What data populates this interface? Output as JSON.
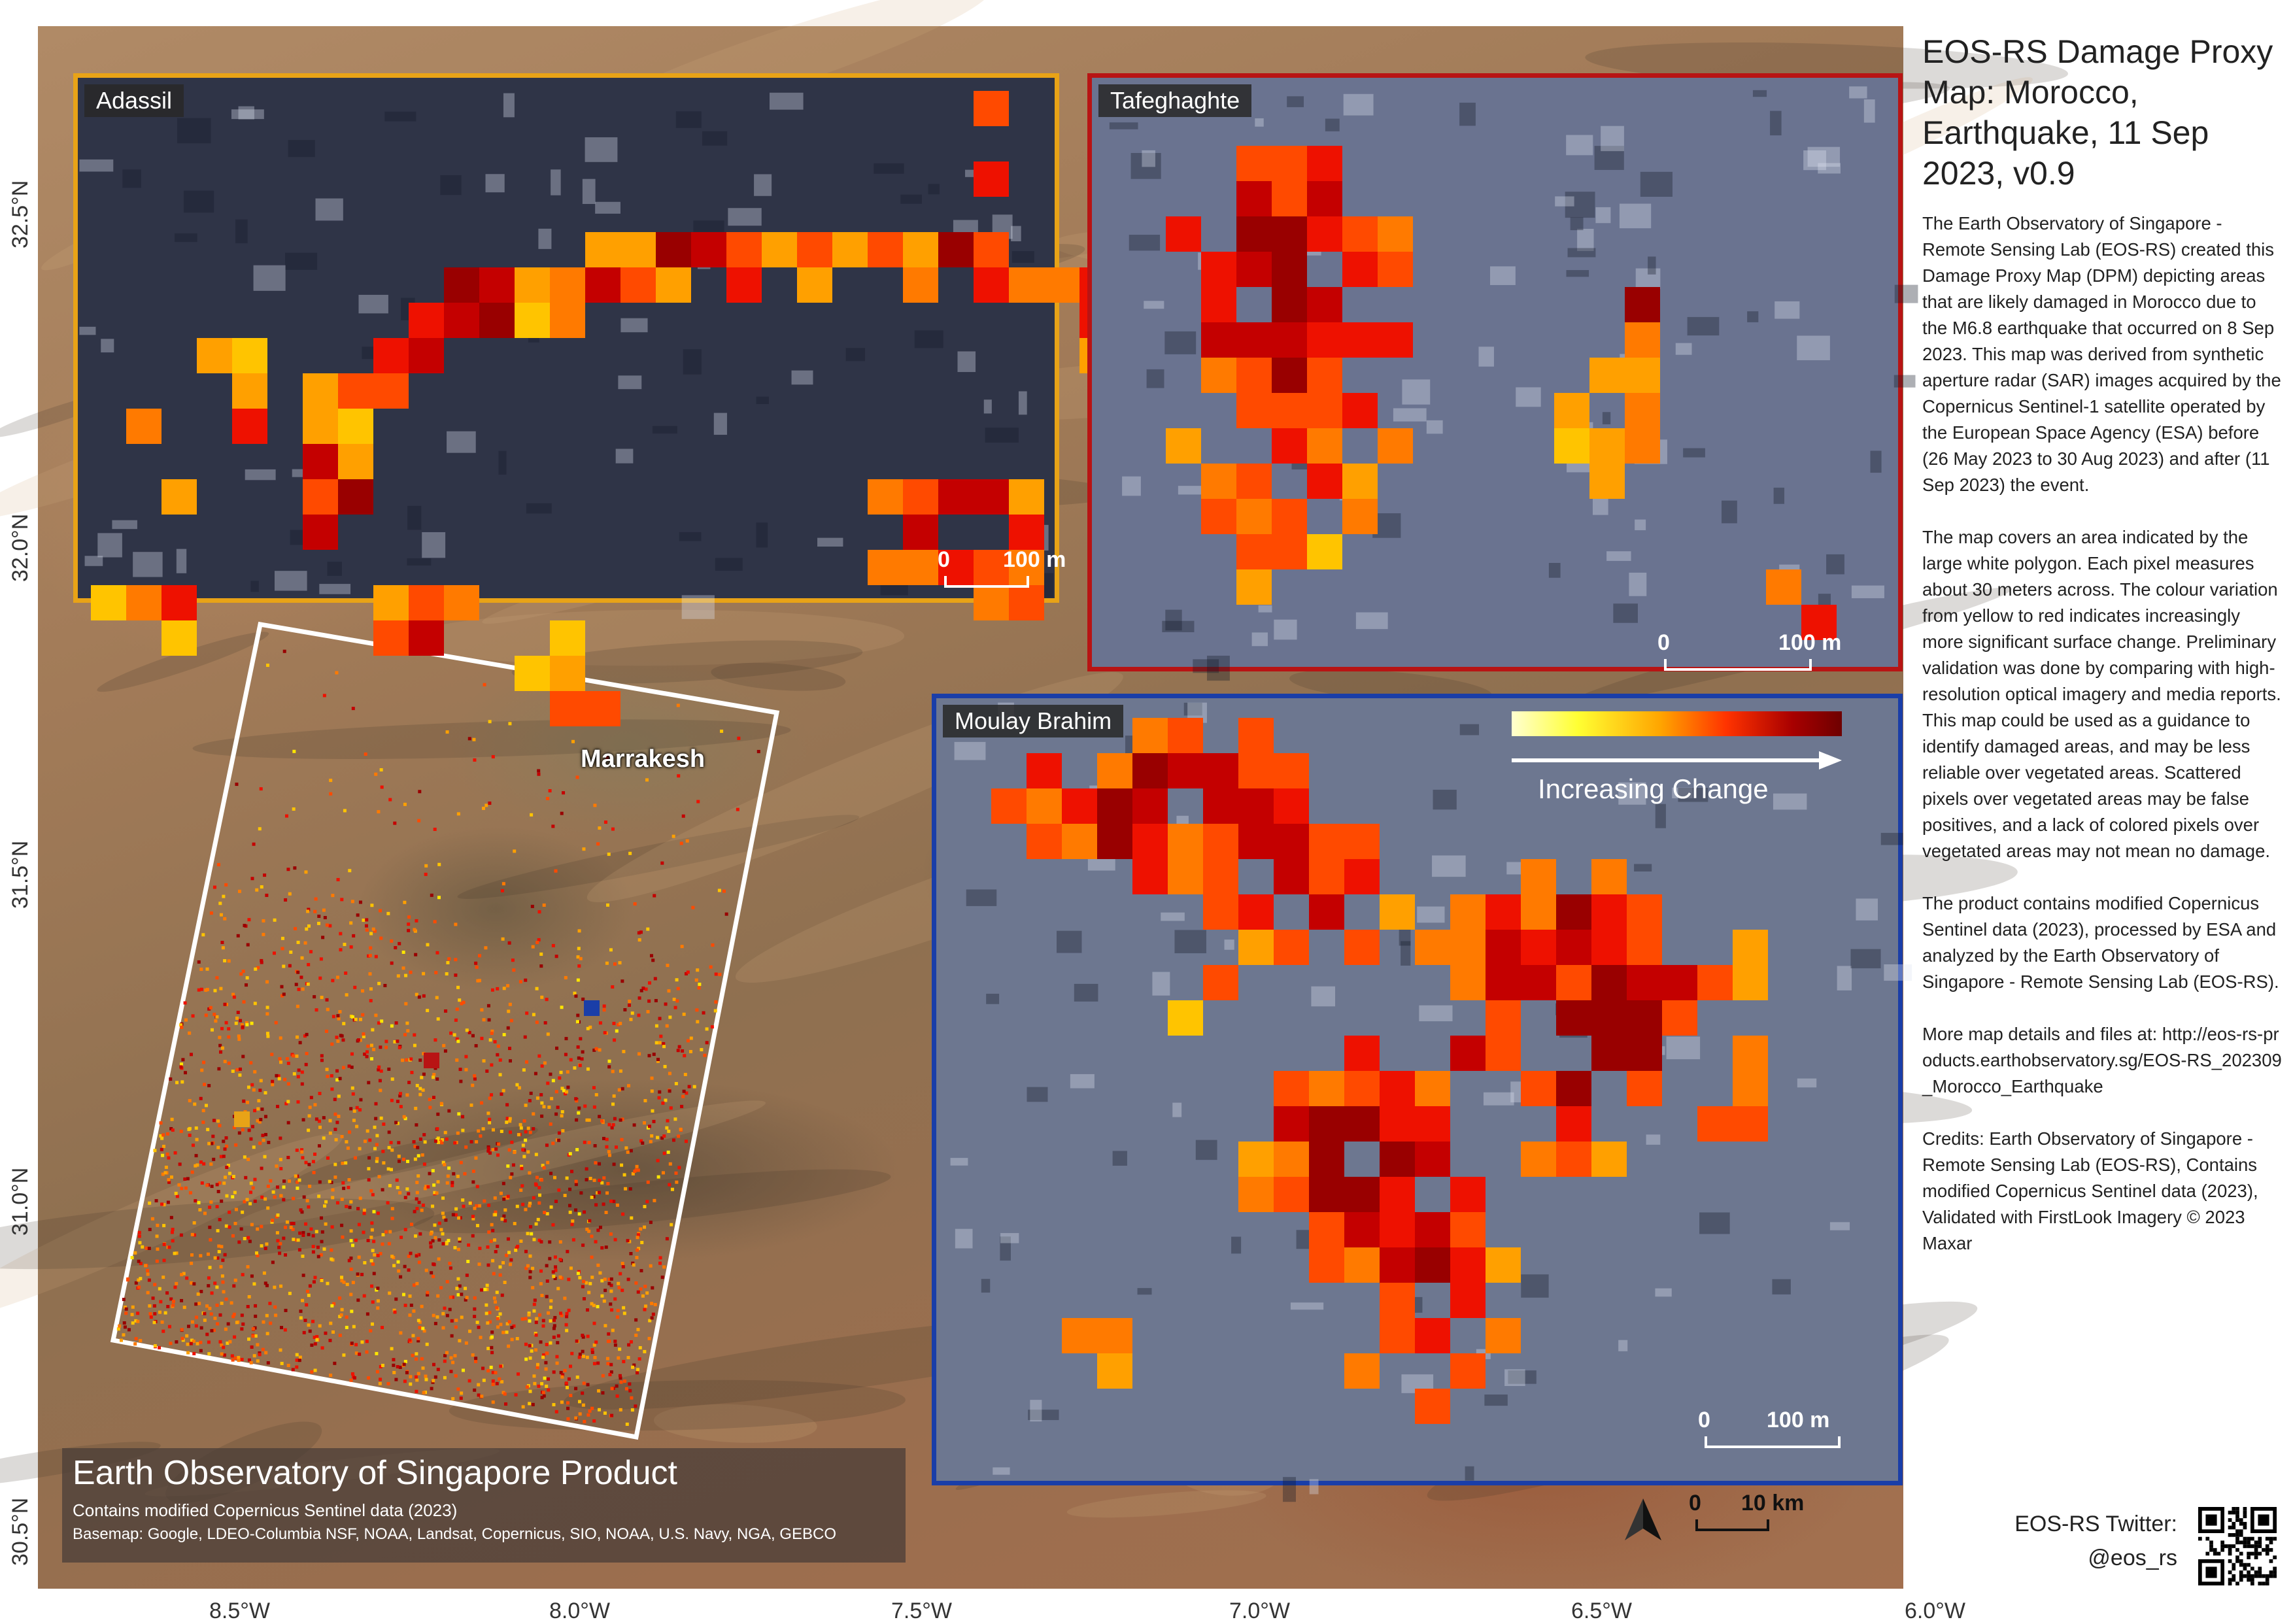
{
  "title": "EOS-RS Damage Proxy Map: Morocco, Earthquake, 11 Sep 2023, v0.9",
  "description": [
    "The Earth Observatory of Singapore - Remote Sensing Lab (EOS-RS) created this Damage Proxy Map (DPM) depicting areas that are likely damaged in Morocco due to the M6.8 earthquake that occurred on 8 Sep 2023. This map was derived from synthetic aperture radar (SAR) images acquired by the Copernicus Sentinel-1 satellite operated by the European Space Agency (ESA) before (26 May 2023 to 30 Aug 2023) and after (11 Sep 2023) the event.",
    "The map covers an area indicated by the large white polygon. Each pixel measures about 30 meters across. The colour variation from yellow to red indicates increasingly more significant surface change. Preliminary validation was done by comparing with high-resolution optical imagery and media reports. This map could be used as a guidance to identify damaged areas, and may be less reliable over vegetated areas. Scattered pixels over vegetated areas may be false positives, and a lack of colored pixels over vegetated areas may not mean no damage.",
    "The product contains modified Copernicus Sentinel data (2023), processed by ESA and analyzed by the Earth Observatory of Singapore - Remote Sensing Lab (EOS-RS).",
    "More map details and files at: http://eos-rs-products.earthobservatory.sg/EOS-RS_202309_Morocco_Earthquake",
    "Credits: Earth Observatory of Singapore - Remote Sensing Lab (EOS-RS), Contains modified Copernicus Sentinel data (2023), Validated with FirstLook Imagery © 2023 Maxar"
  ],
  "twitter": {
    "label": "EOS-RS Twitter:",
    "handle": "@eos_rs"
  },
  "insets": [
    {
      "name": "Adassil",
      "scale_zero": "0",
      "scale_label": "100 m",
      "border_color": "#e8a317"
    },
    {
      "name": "Tafeghaghte",
      "scale_zero": "0",
      "scale_label": "100 m",
      "border_color": "#b81414"
    },
    {
      "name": "Moulay Brahim",
      "scale_zero": "0",
      "scale_label": "100 m",
      "border_color": "#1a3ea8"
    }
  ],
  "legend": {
    "label": "Increasing Change",
    "colors": [
      "#ffffd0",
      "#ffff33",
      "#ffa500",
      "#ff3300",
      "#a80000",
      "#6e0000"
    ]
  },
  "city_label": "Marrakesh",
  "main_scalebar": {
    "zero": "0",
    "label": "10 km"
  },
  "x_ticks": [
    "8.5°W",
    "8.0°W",
    "7.5°W",
    "7.0°W",
    "6.5°W",
    "6.0°W"
  ],
  "y_ticks": [
    "32.5°N",
    "32.0°N",
    "31.5°N",
    "31.0°N",
    "30.5°N"
  ],
  "product_box": {
    "title": "Earth Observatory of Singapore Product",
    "line1": "Contains modified Copernicus Sentinel data (2023)",
    "line2": "Basemap: Google, LDEO-Columbia NSF, NOAA, Landsat, Copernicus, SIO, NOAA, U.S. Navy, NGA, GEBCO"
  },
  "location_markers": [
    {
      "name": "Adassil",
      "color": "#e8a317"
    },
    {
      "name": "Tafeghaghte",
      "color": "#b81414"
    },
    {
      "name": "Moulay Brahim",
      "color": "#1a3ea8"
    }
  ],
  "icons": [
    "north-arrow-icon",
    "qr-code-icon"
  ]
}
